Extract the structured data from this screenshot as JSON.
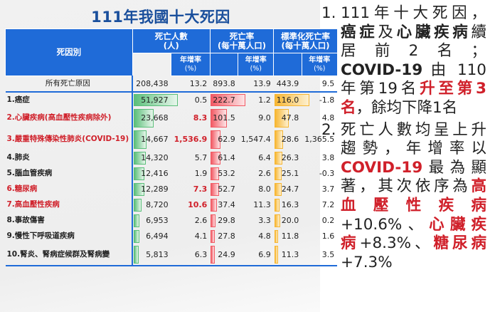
{
  "title": "111年我國十大死因",
  "headers": {
    "cause": "死因別",
    "deaths": "死亡人數",
    "deaths_unit": "(人)",
    "rate": "死亡率",
    "rate_unit": "(每十萬人口)",
    "std": "標準化死亡率",
    "std_unit": "(每十萬人口)",
    "growth": "年增率",
    "growth_unit": "(%)"
  },
  "total": {
    "name": "所有死亡原因",
    "deaths": "208,438",
    "deaths_g": "13.2",
    "rate": "893.8",
    "rate_g": "13.9",
    "std": "443.9",
    "std_g": "9.5"
  },
  "rows": [
    {
      "name": "1.癌症",
      "red": false,
      "deaths": "51,927",
      "dv": 51927,
      "deaths_g": "0.5",
      "rate": "222.7",
      "rv": 222.7,
      "rate_g": "1.2",
      "std": "116.0",
      "sv": 116.0,
      "std_g": "-1.8"
    },
    {
      "name": "2.心臟疾病(高血壓性疾病除外)",
      "red": true,
      "deaths": "23,668",
      "dv": 23668,
      "deaths_g": "8.3",
      "rate": "101.5",
      "rv": 101.5,
      "rate_g": "9.0",
      "std": "47.8",
      "sv": 47.8,
      "std_g": "4.8"
    },
    {
      "name": "3.嚴重特殊傳染性肺炎(COVID-19)",
      "red": true,
      "deaths": "14,667",
      "dv": 14667,
      "deaths_g": "1,536.9",
      "rate": "62.9",
      "rv": 62.9,
      "rate_g": "1,547.4",
      "std": "28.6",
      "sv": 28.6,
      "std_g": "1,365.5"
    },
    {
      "name": "4.肺炎",
      "red": false,
      "deaths": "14,320",
      "dv": 14320,
      "deaths_g": "5.7",
      "rate": "61.4",
      "rv": 61.4,
      "rate_g": "6.4",
      "std": "26.3",
      "sv": 26.3,
      "std_g": "3.8"
    },
    {
      "name": "5.腦血管疾病",
      "red": false,
      "deaths": "12,416",
      "dv": 12416,
      "deaths_g": "1.9",
      "rate": "53.2",
      "rv": 53.2,
      "rate_g": "2.6",
      "std": "25.1",
      "sv": 25.1,
      "std_g": "-0.3"
    },
    {
      "name": "6.糖尿病",
      "red": true,
      "deaths": "12,289",
      "dv": 12289,
      "deaths_g": "7.3",
      "rate": "52.7",
      "rv": 52.7,
      "rate_g": "8.0",
      "std": "24.7",
      "sv": 24.7,
      "std_g": "3.7"
    },
    {
      "name": "7.高血壓性疾病",
      "red": true,
      "deaths": "8,720",
      "dv": 8720,
      "deaths_g": "10.6",
      "rate": "37.4",
      "rv": 37.4,
      "rate_g": "11.3",
      "std": "16.3",
      "sv": 16.3,
      "std_g": "7.2"
    },
    {
      "name": "8.事故傷害",
      "red": false,
      "deaths": "6,953",
      "dv": 6953,
      "deaths_g": "2.6",
      "rate": "29.8",
      "rv": 29.8,
      "rate_g": "3.3",
      "std": "20.0",
      "sv": 20.0,
      "std_g": "0.2"
    },
    {
      "name": "9.慢性下呼吸道疾病",
      "red": false,
      "deaths": "6,494",
      "dv": 6494,
      "deaths_g": "4.1",
      "rate": "27.8",
      "rv": 27.8,
      "rate_g": "4.8",
      "std": "11.8",
      "sv": 11.8,
      "std_g": "1.6"
    },
    {
      "name": "10.腎炎、腎病症候群及腎病變",
      "red": false,
      "deaths": "5,813",
      "dv": 5813,
      "deaths_g": "6.3",
      "rate": "24.9",
      "rv": 24.9,
      "rate_g": "6.9",
      "std": "11.3",
      "sv": 11.3,
      "std_g": "3.5"
    }
  ],
  "colors": {
    "header": "#1f6bd8",
    "title": "#1a4f9c",
    "highlight": "#d0202a",
    "deaths_bar": "#5bbf7a",
    "rate_bar": "#f25a64",
    "std_bar": "#f7b632"
  },
  "notes": [
    {
      "num": "1.",
      "lines": [
        [
          [
            "111年十大死因，",
            ""
          ]
        ],
        [
          [
            "癌症",
            "bold"
          ],
          [
            "及",
            ""
          ],
          [
            "心臟疾病",
            "bold"
          ],
          [
            "續",
            ""
          ]
        ],
        [
          [
            "居前2名；",
            ""
          ]
        ],
        [
          [
            "COVID-19",
            "bold"
          ],
          [
            " 由 110",
            ""
          ]
        ],
        [
          [
            "年第19名",
            ""
          ],
          [
            "升至第3",
            "red"
          ]
        ],
        [
          [
            "名",
            "red"
          ],
          [
            "，餘均下降1名",
            ""
          ]
        ]
      ]
    },
    {
      "num": "2.",
      "lines": [
        [
          [
            "死亡人數均呈上升",
            ""
          ]
        ],
        [
          [
            "趨勢，年增率以",
            ""
          ]
        ],
        [
          [
            "COVID-19",
            "red"
          ],
          [
            "最為顯",
            ""
          ]
        ],
        [
          [
            "著，其次依序為",
            ""
          ],
          [
            "高",
            "red"
          ]
        ],
        [
          [
            "血壓性疾病",
            "red"
          ]
        ],
        [
          [
            "+10.6%、",
            ""
          ],
          [
            "心臟疾",
            "red"
          ]
        ],
        [
          [
            "病",
            "red"
          ],
          [
            "+8.3%、",
            ""
          ],
          [
            "糖尿病",
            "red"
          ]
        ],
        [
          [
            "+7.3%",
            ""
          ]
        ]
      ]
    }
  ]
}
